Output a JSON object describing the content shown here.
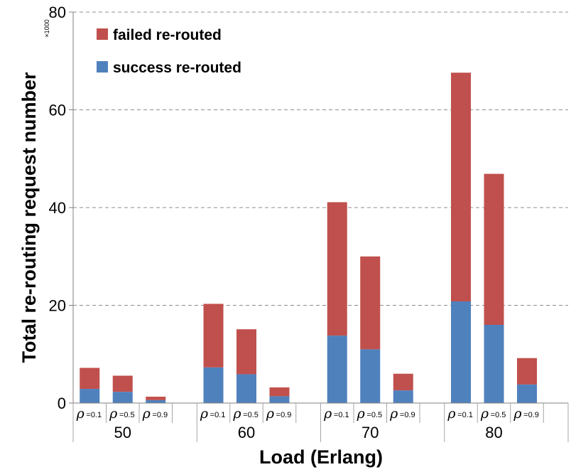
{
  "chart_data": {
    "type": "bar",
    "stacked": true,
    "xlabel": "Load (Erlang)",
    "ylabel": "Total re-routing request number",
    "y_multiplier": "×1000",
    "ylim": [
      0,
      80
    ],
    "yticks": [
      0,
      20,
      40,
      60,
      80
    ],
    "grid": "horizontal dashed",
    "legend_position": "top-left",
    "groups": [
      "50",
      "60",
      "70",
      "80"
    ],
    "bar_labels": [
      {
        "symbol": "ρ",
        "value": "=0.1"
      },
      {
        "symbol": "ρ",
        "value": "=0.5"
      },
      {
        "symbol": "ρ",
        "value": "=0.9"
      }
    ],
    "series": [
      {
        "name": "success re-routed",
        "color": "#4f81bd",
        "values": [
          [
            2.9,
            2.3,
            0.6
          ],
          [
            7.3,
            5.9,
            1.4
          ],
          [
            13.8,
            11.0,
            2.6
          ],
          [
            20.8,
            16.0,
            3.8
          ]
        ]
      },
      {
        "name": "failed re-routed",
        "color": "#c0504d",
        "values": [
          [
            4.3,
            3.3,
            0.7
          ],
          [
            13.0,
            9.2,
            1.8
          ],
          [
            27.3,
            19.0,
            3.4
          ],
          [
            46.8,
            30.9,
            5.4
          ]
        ]
      }
    ],
    "legend_order": [
      "failed re-routed",
      "success re-routed"
    ]
  }
}
